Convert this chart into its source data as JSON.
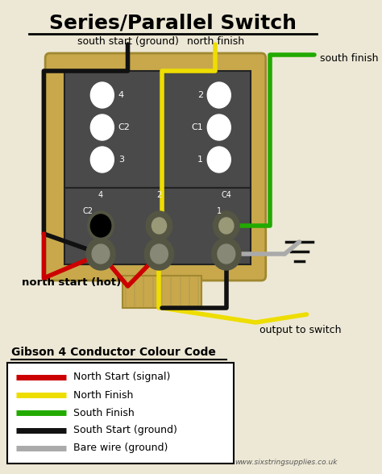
{
  "title": "Series/Parallel Switch",
  "bg_color": "#ede8d5",
  "pickup_body_color": "#4a4a4a",
  "pickup_frame_color": "#c8a84b",
  "pickup_frame_edge": "#a08830",
  "wire_colors": {
    "red": "#cc0000",
    "yellow": "#eedd00",
    "green": "#22aa00",
    "black": "#111111",
    "gray": "#aaaaaa"
  },
  "legend_title": "Gibson 4 Conductor Colour Code",
  "legend_items": [
    {
      "color": "#cc0000",
      "label": "North Start (signal)"
    },
    {
      "color": "#eedd00",
      "label": "North Finish"
    },
    {
      "color": "#22aa00",
      "label": "South Finish"
    },
    {
      "color": "#111111",
      "label": "South Start (ground)"
    },
    {
      "color": "#aaaaaa",
      "label": "Bare wire (ground)"
    }
  ],
  "labels": {
    "south_start": "south start (ground)",
    "north_finish": "north finish",
    "south_finish": "south finish",
    "north_start": "north start (hot)",
    "output": "output to switch",
    "website": "www.sixstringsupplies.co.uk"
  }
}
